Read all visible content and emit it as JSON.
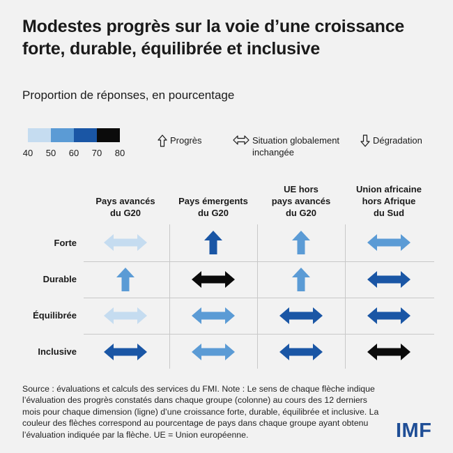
{
  "title": "Modestes progrès sur la voie d’une croissance forte, durable, équilibrée et inclusive",
  "subtitle": "Proportion de réponses, en pourcentage",
  "colors": {
    "40-50": "#c5dcf0",
    "50-60": "#5b9bd5",
    "60-70": "#1a56a5",
    "70-80": "#0b0b0b"
  },
  "chart_data": {
    "type": "table",
    "scale": {
      "ticks": [
        "40",
        "50",
        "60",
        "70",
        "80"
      ],
      "bins": [
        {
          "range": [
            40,
            50
          ],
          "color": "#c5dcf0"
        },
        {
          "range": [
            50,
            60
          ],
          "color": "#5b9bd5"
        },
        {
          "range": [
            60,
            70
          ],
          "color": "#1a56a5"
        },
        {
          "range": [
            70,
            80
          ],
          "color": "#0b0b0b"
        }
      ]
    },
    "legend": {
      "up": "Progrès",
      "flat_line1": "Situation globalement",
      "flat_line2": "inchangée",
      "down": "Dégradation"
    },
    "columns": [
      {
        "line1": "Pays avancés",
        "line2": "du G20"
      },
      {
        "line1": "Pays émergents",
        "line2": "du G20"
      },
      {
        "line1": "UE hors",
        "line2": "pays avancés",
        "line3": "du G20"
      },
      {
        "line1": "Union africaine",
        "line2": "hors Afrique",
        "line3": "du Sud"
      }
    ],
    "rows": [
      "Forte",
      "Durable",
      "Équilibrée",
      "Inclusive"
    ],
    "cells": [
      [
        {
          "dir": "flat",
          "bin": "40-50"
        },
        {
          "dir": "up",
          "bin": "60-70"
        },
        {
          "dir": "up",
          "bin": "50-60"
        },
        {
          "dir": "flat",
          "bin": "50-60"
        }
      ],
      [
        {
          "dir": "up",
          "bin": "50-60"
        },
        {
          "dir": "flat",
          "bin": "70-80"
        },
        {
          "dir": "up",
          "bin": "50-60"
        },
        {
          "dir": "flat",
          "bin": "60-70"
        }
      ],
      [
        {
          "dir": "flat",
          "bin": "40-50"
        },
        {
          "dir": "flat",
          "bin": "50-60"
        },
        {
          "dir": "flat",
          "bin": "60-70"
        },
        {
          "dir": "flat",
          "bin": "60-70"
        }
      ],
      [
        {
          "dir": "flat",
          "bin": "60-70"
        },
        {
          "dir": "flat",
          "bin": "50-60"
        },
        {
          "dir": "flat",
          "bin": "60-70"
        },
        {
          "dir": "flat",
          "bin": "70-80"
        }
      ]
    ]
  },
  "source": "Source : évaluations et calculs des services du FMI. Note : Le sens de chaque flèche indique l’évaluation des progrès constatés dans chaque groupe (colonne) au cours des 12 derniers mois pour chaque dimension (ligne) d’une croissance forte, durable, équilibrée et inclusive. La couleur des flèches correspond au pourcentage de pays dans chaque groupe ayant obtenu l’évaluation indiquée par la flèche. UE = Union européenne.",
  "logo": "IMF"
}
